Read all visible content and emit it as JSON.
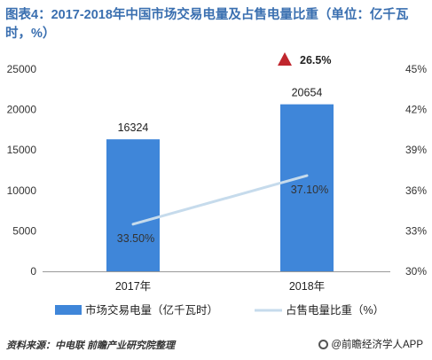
{
  "chart_data": {
    "type": "bar+line",
    "title": "图表4：2017-2018年中国市场交易电量及占售电量比重（单位：亿千瓦时，%）",
    "categories": [
      "2017年",
      "2018年"
    ],
    "series": [
      {
        "name": "市场交易电量（亿千瓦时）",
        "type": "bar",
        "axis": "left",
        "values": [
          16324,
          20654
        ],
        "color": "#3f86d9"
      },
      {
        "name": "占售电量比重（%）",
        "type": "line",
        "axis": "right",
        "values": [
          33.5,
          37.1
        ],
        "labels": [
          "33.50%",
          "37.10%"
        ],
        "color": "#c6dbec"
      }
    ],
    "y_left": {
      "min": 0,
      "max": 25000,
      "ticks": [
        "0",
        "5000",
        "10000",
        "15000",
        "20000",
        "25000"
      ]
    },
    "y_right": {
      "min": 30,
      "max": 45,
      "ticks": [
        "30%",
        "33%",
        "36%",
        "39%",
        "42%",
        "45%"
      ]
    },
    "annotation": {
      "text": "26.5%",
      "marker": "up-triangle",
      "color": "#c0262d"
    },
    "grid": false,
    "legend_position": "bottom"
  },
  "footer": {
    "source": "资料来源：中电联 前瞻产业研究院整理",
    "brand": "@前瞻经济学人APP"
  }
}
